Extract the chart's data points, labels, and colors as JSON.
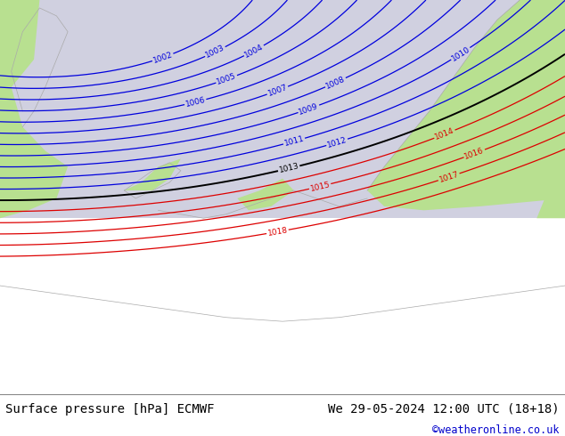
{
  "title_left": "Surface pressure [hPa] ECMWF",
  "title_right": "We 29-05-2024 12:00 UTC (18+18)",
  "credit": "©weatheronline.co.uk",
  "bg_land_color": "#b8e090",
  "bg_sea_color": "#d0d0e0",
  "contour_blue_color": "#0000dd",
  "contour_black_color": "#000000",
  "contour_red_color": "#dd0000",
  "coast_color": "#aaaaaa",
  "footer_bg": "#ffffff",
  "footer_text_color": "#000000",
  "credit_color": "#0000cc",
  "font_size_footer": 10,
  "blue_levels": [
    1002,
    1003,
    1004,
    1005,
    1006,
    1007,
    1008,
    1009,
    1010,
    1011,
    1012
  ],
  "black_levels": [
    1013
  ],
  "red_levels": [
    1014,
    1015,
    1016,
    1017,
    1018
  ]
}
